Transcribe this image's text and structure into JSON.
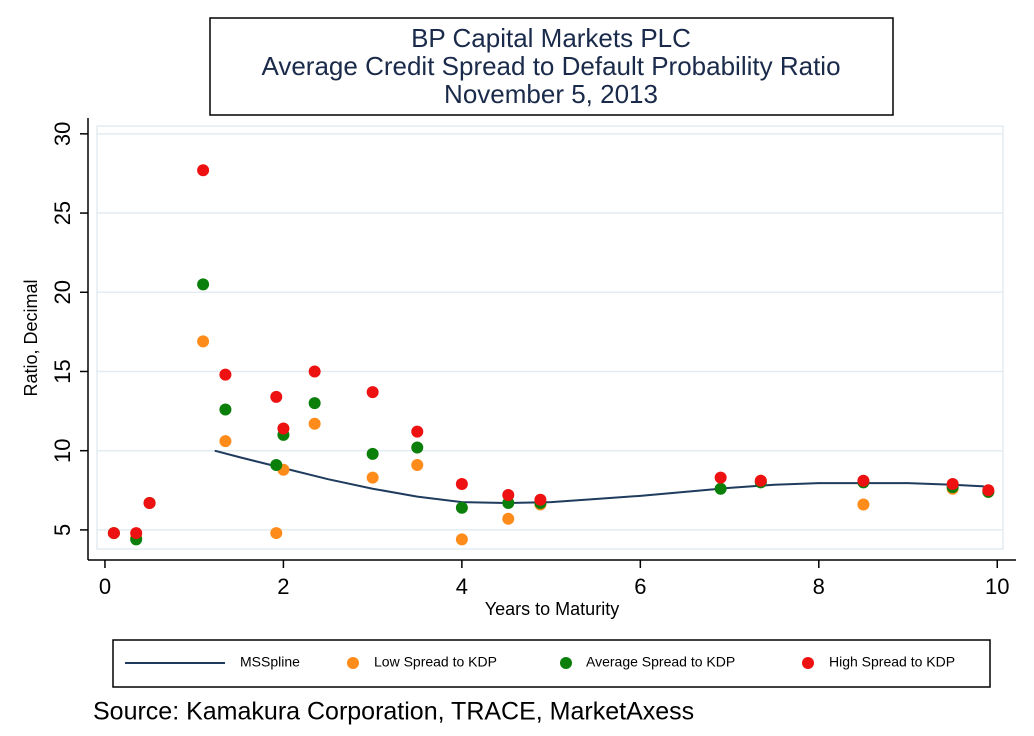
{
  "chart_data": {
    "type": "scatter",
    "title": [
      "BP Capital Markets PLC",
      "Average Credit Spread to Default Probability Ratio",
      "November 5, 2013"
    ],
    "x_label": "Years to Maturity",
    "y_label": "Ratio, Decimal",
    "source": "Source: Kamakura Corporation, TRACE, MarketAxess",
    "xlim": [
      -0.19,
      10.21
    ],
    "ylim": [
      3.1,
      31
    ],
    "xticks": [
      0,
      2,
      4,
      6,
      8,
      10
    ],
    "yticks": [
      5,
      10,
      15,
      20,
      25,
      30
    ],
    "grid": true,
    "legend": "bottom",
    "series": [
      {
        "name": "MSSpline",
        "type": "line",
        "color": "#1f3b5e",
        "x": [
          1.23,
          1.5,
          2,
          2.5,
          3,
          3.5,
          4,
          4.5,
          5,
          5.5,
          6,
          6.5,
          7,
          7.5,
          8,
          8.5,
          9,
          9.5,
          9.85
        ],
        "values": [
          10.0,
          9.6,
          8.9,
          8.2,
          7.6,
          7.1,
          6.75,
          6.7,
          6.75,
          6.95,
          7.15,
          7.4,
          7.65,
          7.85,
          7.95,
          7.95,
          7.95,
          7.85,
          7.75
        ]
      },
      {
        "name": "Low Spread to KDP",
        "type": "scatter",
        "color": "#ff8c1a",
        "x": [
          0.1,
          0.35,
          0.5,
          1.1,
          1.35,
          1.92,
          2.0,
          2.35,
          3.0,
          3.5,
          4.0,
          4.52,
          4.88,
          7.35,
          8.5,
          9.5,
          9.9
        ],
        "values": [
          4.8,
          4.5,
          6.7,
          16.9,
          10.6,
          4.8,
          8.8,
          11.7,
          8.3,
          9.1,
          4.4,
          5.7,
          6.6,
          8.1,
          6.6,
          7.6,
          7.4
        ]
      },
      {
        "name": "Average Spread to KDP",
        "type": "scatter",
        "color": "#0a7f0a",
        "x": [
          0.1,
          0.35,
          0.5,
          1.1,
          1.35,
          1.92,
          2.0,
          2.35,
          3.0,
          3.5,
          4.0,
          4.52,
          4.88,
          6.9,
          7.35,
          8.5,
          9.5,
          9.9
        ],
        "values": [
          4.8,
          4.4,
          6.7,
          20.5,
          12.6,
          9.1,
          11.0,
          13.0,
          9.8,
          10.2,
          6.4,
          6.7,
          6.7,
          7.6,
          8.0,
          8.0,
          7.7,
          7.4
        ]
      },
      {
        "name": "High Spread to KDP",
        "type": "scatter",
        "color": "#ee1111",
        "x": [
          0.1,
          0.35,
          0.5,
          1.1,
          1.35,
          1.92,
          2.0,
          2.35,
          3.0,
          3.5,
          4.0,
          4.52,
          4.88,
          6.9,
          7.35,
          8.5,
          9.5,
          9.9
        ],
        "values": [
          4.8,
          4.8,
          6.7,
          27.7,
          14.8,
          13.4,
          11.4,
          15.0,
          13.7,
          11.2,
          7.9,
          7.2,
          6.9,
          8.3,
          8.1,
          8.1,
          7.9,
          7.5
        ]
      }
    ]
  }
}
